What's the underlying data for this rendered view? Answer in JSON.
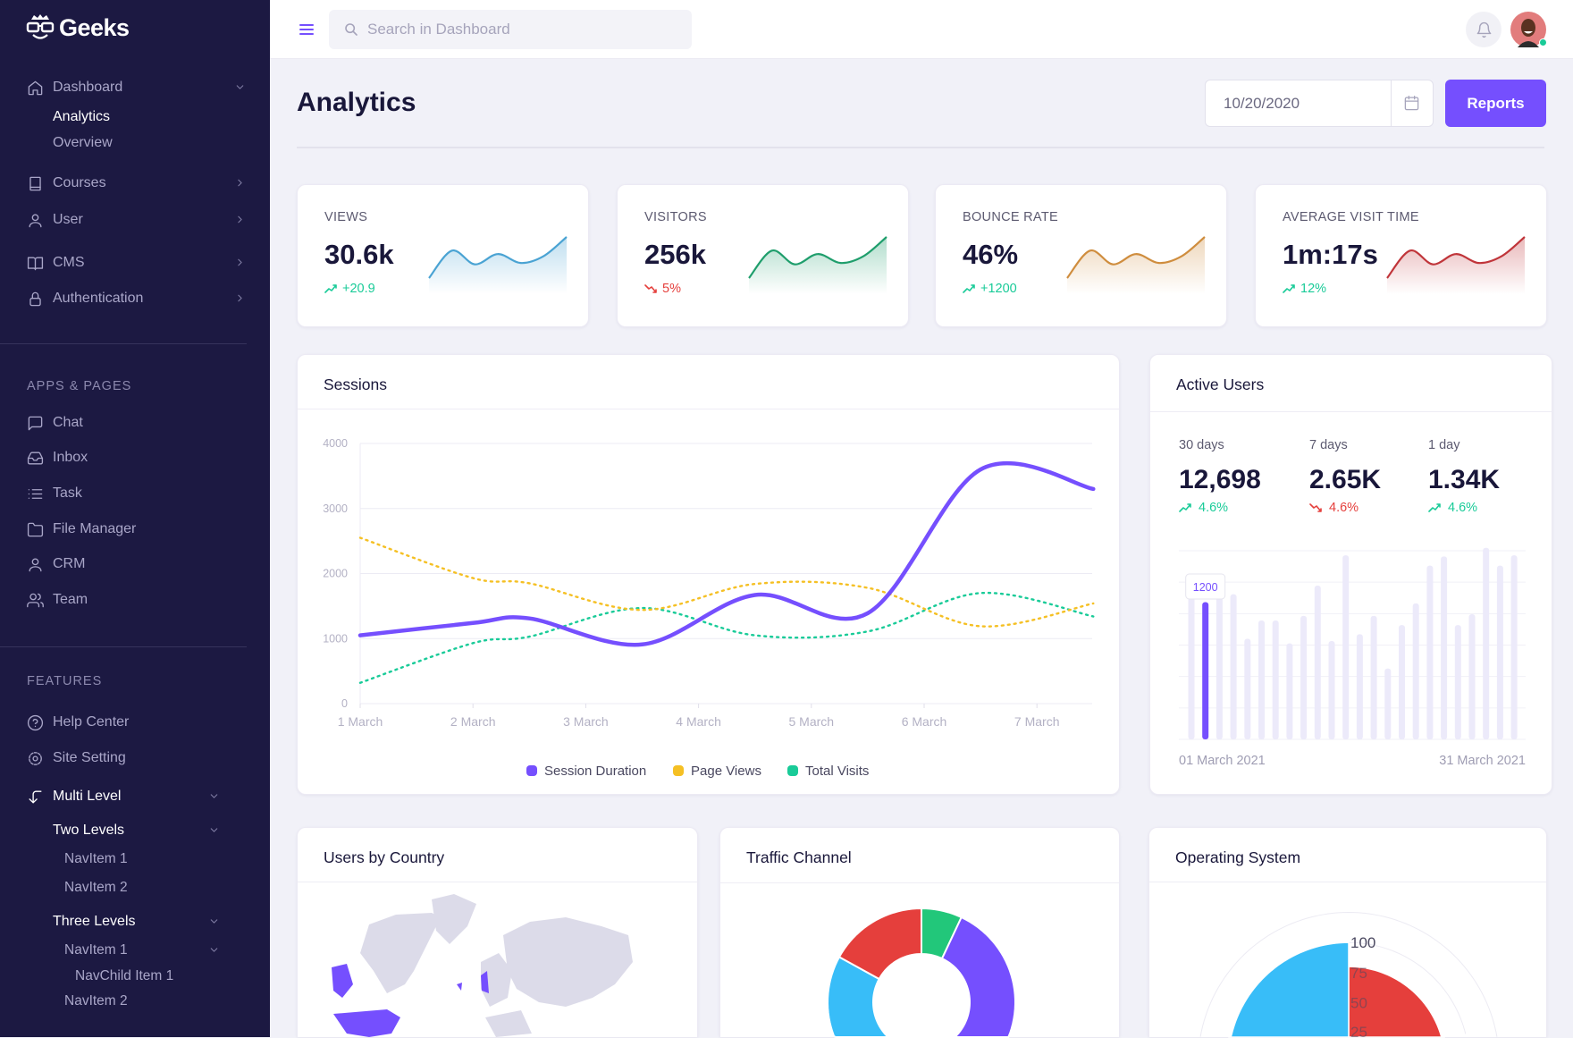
{
  "brand": {
    "name": "Geeks",
    "logo_icon": "geek-glasses-logo"
  },
  "sidebar": {
    "nav": [
      {
        "type": "item",
        "label": "Dashboard",
        "icon": "home-icon",
        "chevron": "down"
      },
      {
        "type": "sub",
        "label": "Analytics",
        "active": true
      },
      {
        "type": "sub",
        "label": "Overview"
      },
      {
        "type": "item",
        "label": "Courses",
        "icon": "book-icon",
        "chevron": "right"
      },
      {
        "type": "item",
        "label": "User",
        "icon": "user-icon",
        "chevron": "right"
      },
      {
        "type": "item",
        "label": "CMS",
        "icon": "book-open-icon",
        "chevron": "right"
      },
      {
        "type": "item",
        "label": "Authentication",
        "icon": "lock-icon",
        "chevron": "right"
      },
      {
        "type": "heading",
        "label": "APPS & PAGES"
      },
      {
        "type": "item",
        "label": "Chat",
        "icon": "chat-icon"
      },
      {
        "type": "item",
        "label": "Inbox",
        "icon": "inbox-icon"
      },
      {
        "type": "item",
        "label": "Task",
        "icon": "list-icon"
      },
      {
        "type": "item",
        "label": "File Manager",
        "icon": "folder-icon"
      },
      {
        "type": "item",
        "label": "CRM",
        "icon": "user-icon"
      },
      {
        "type": "item",
        "label": "Team",
        "icon": "users-icon"
      },
      {
        "type": "heading",
        "label": "FEATURES"
      },
      {
        "type": "item",
        "label": "Help Center",
        "icon": "help-circle-icon"
      },
      {
        "type": "item",
        "label": "Site Setting",
        "icon": "settings-icon"
      },
      {
        "type": "item",
        "label": "Multi Level",
        "icon": "corner-left-down-icon",
        "chevron": "down",
        "active": true
      },
      {
        "type": "sub",
        "label": "Two Levels",
        "chevron": "down",
        "active": true
      },
      {
        "type": "sub2",
        "label": "NavItem 1"
      },
      {
        "type": "sub2",
        "label": "NavItem 2"
      },
      {
        "type": "sub",
        "label": "Three Levels",
        "chevron": "down",
        "active": true
      },
      {
        "type": "sub2",
        "label": "NavItem 1",
        "chevron": "down"
      },
      {
        "type": "sub3",
        "label": "NavChild Item 1"
      },
      {
        "type": "sub2",
        "label": "NavItem 2"
      }
    ]
  },
  "topbar": {
    "search_placeholder": "Search in Dashboard",
    "notification_icon": "bell-icon",
    "user_status": "online"
  },
  "page": {
    "title": "Analytics",
    "date_value": "10/20/2020",
    "reports_label": "Reports"
  },
  "colors": {
    "primary": "#754ffe",
    "success": "#19cb98",
    "danger": "#e53f3c",
    "warning": "#f5c024",
    "info": "#38bdf8",
    "sidebar": "#1c1942"
  },
  "stats": [
    {
      "label": "VIEWS",
      "value": "30.6k",
      "change": "+20.9",
      "trend": "up",
      "color": "#4aa3d3",
      "spark": [
        2,
        6,
        4,
        5.5,
        4.2,
        5.2,
        8
      ]
    },
    {
      "label": "VISITORS",
      "value": "256k",
      "change": "5%",
      "trend": "down",
      "color": "#1f9e6c",
      "spark": [
        2,
        6,
        4,
        5.5,
        4.2,
        5.2,
        8
      ]
    },
    {
      "label": "BOUNCE RATE",
      "value": "46%",
      "change": "+1200",
      "trend": "up",
      "color": "#cf8d3e",
      "spark": [
        2,
        6,
        4,
        5.5,
        4.2,
        5.2,
        8
      ]
    },
    {
      "label": "AVERAGE VISIT TIME",
      "value": "1m:17s",
      "change": "12%",
      "trend": "up",
      "color": "#c0353a",
      "spark": [
        2,
        6,
        4,
        5.5,
        4.2,
        5.2,
        8
      ]
    }
  ],
  "sessions": {
    "title": "Sessions",
    "chart_data": {
      "type": "line",
      "x_tick_labels": [
        "1 March",
        "2 March",
        "3 March",
        "4 March",
        "5 March",
        "6 March",
        "7 March"
      ],
      "x_ticks": [
        1,
        2,
        3,
        4,
        5,
        6,
        7
      ],
      "y_ticks": [
        0,
        1000,
        2000,
        3000,
        4000
      ],
      "ylim": [
        0,
        4000
      ],
      "grid": true,
      "legend_position": "bottom",
      "x": [
        1,
        2,
        2.5,
        3.5,
        4.5,
        5.5,
        6.5,
        7.5
      ],
      "series": [
        {
          "name": "Session Duration",
          "color": "#754ffe",
          "style": "solid",
          "values": [
            1050,
            1240,
            1310,
            910,
            1670,
            1390,
            3600,
            3300
          ]
        },
        {
          "name": "Page Views",
          "color": "#f5c024",
          "style": "dotted",
          "values": [
            2550,
            1930,
            1850,
            1440,
            1840,
            1780,
            1190,
            1540
          ]
        },
        {
          "name": "Total Visits",
          "color": "#19cb98",
          "style": "dotted",
          "values": [
            320,
            930,
            1030,
            1470,
            1050,
            1110,
            1700,
            1340
          ]
        }
      ]
    }
  },
  "active_users": {
    "title": "Active Users",
    "periods": [
      {
        "label": "30 days",
        "value": "12,698",
        "change": "4.6%",
        "trend": "up"
      },
      {
        "label": "7 days",
        "value": "2.65K",
        "change": "4.6%",
        "trend": "down"
      },
      {
        "label": "1 day",
        "value": "1.34K",
        "change": "4.6%",
        "trend": "up"
      }
    ],
    "chart_data": {
      "type": "bar",
      "x_start_label": "01 March 2021",
      "x_end_label": "31 March 2021",
      "ylim": [
        0,
        1650
      ],
      "highlight_index": 1,
      "tooltip": "1200",
      "values": [
        1250,
        1200,
        1270,
        1270,
        880,
        1040,
        1040,
        840,
        1080,
        1345,
        860,
        1610,
        920,
        1080,
        620,
        1000,
        1190,
        1520,
        1600,
        1000,
        1095,
        1675,
        1520,
        1610
      ]
    }
  },
  "users_by_country": {
    "title": "Users by Country",
    "highlight_color": "#754ffe"
  },
  "traffic_channel": {
    "title": "Traffic Channel",
    "chart_data": {
      "type": "pie",
      "donut": true,
      "slices": [
        {
          "color": "#22c77a",
          "value": 7
        },
        {
          "color": "#754ffe",
          "value": 40
        },
        {
          "color": "#38bdf8",
          "value": 36
        },
        {
          "color": "#e53f3c",
          "value": 17
        }
      ]
    }
  },
  "operating_system": {
    "title": "Operating System",
    "chart_data": {
      "type": "polar-area",
      "r_ticks": [
        25,
        50,
        75,
        100
      ],
      "r_max": 125,
      "slices": [
        {
          "color": "#e53f3c",
          "value": 80
        },
        {
          "color": "#38bdf8",
          "value": 100
        }
      ]
    }
  }
}
